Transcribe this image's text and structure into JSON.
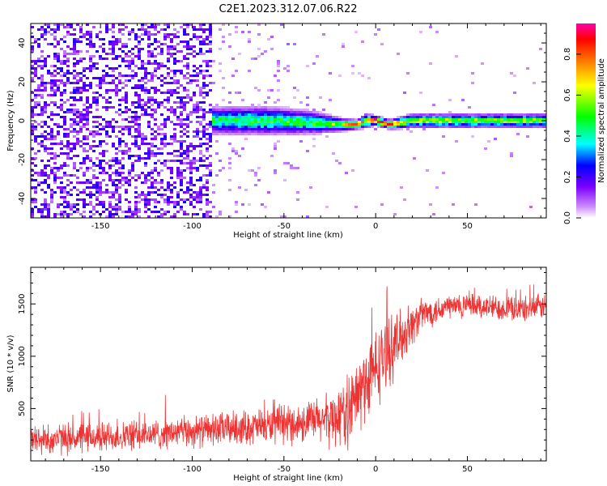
{
  "title": "C2E1.2023.312.07.06.R22",
  "chart_data": [
    {
      "type": "heatmap",
      "title": "C2E1.2023.312.07.06.R22",
      "xlabel": "Height of straight line (km)",
      "ylabel": "Frequency (Hz)",
      "xlim": [
        -188,
        93
      ],
      "ylim": [
        -50,
        50
      ],
      "xticks": [
        -150,
        -100,
        -50,
        0,
        50
      ],
      "yticks": [
        -40,
        -20,
        0,
        20,
        40
      ],
      "colorbar": {
        "label": "Normalized spectral amplitude",
        "range": [
          0,
          0.95
        ],
        "ticks": [
          0.0,
          0.2,
          0.4,
          0.6,
          0.8
        ],
        "colors": [
          "#ffffff",
          "#cc88ff",
          "#7b00ff",
          "#0000ff",
          "#00ffff",
          "#00ff00",
          "#ffff00",
          "#ff7f00",
          "#ff0000",
          "#ff00aa"
        ]
      },
      "noise_region": {
        "x_range": [
          -188,
          -90
        ],
        "amplitude": 0.2
      },
      "signal_band": [
        {
          "x": -90,
          "center": 0,
          "halfwidth": 6,
          "amplitude": 0.45
        },
        {
          "x": -60,
          "center": 0,
          "halfwidth": 6,
          "amplitude": 0.5
        },
        {
          "x": -35,
          "center": -1,
          "halfwidth": 5,
          "amplitude": 0.5
        },
        {
          "x": -20,
          "center": -2,
          "halfwidth": 3,
          "amplitude": 0.6
        },
        {
          "x": -10,
          "center": -2,
          "halfwidth": 2,
          "amplitude": 0.8
        },
        {
          "x": -5,
          "center": 0,
          "halfwidth": 3,
          "amplitude": 0.7
        },
        {
          "x": 0,
          "center": 0,
          "halfwidth": 2,
          "amplitude": 0.95
        },
        {
          "x": 8,
          "center": -2,
          "halfwidth": 2,
          "amplitude": 0.85
        },
        {
          "x": 20,
          "center": 0,
          "halfwidth": 3,
          "amplitude": 0.6
        },
        {
          "x": 50,
          "center": 0,
          "halfwidth": 3,
          "amplitude": 0.6
        },
        {
          "x": 93,
          "center": 0,
          "halfwidth": 3,
          "amplitude": 0.55
        }
      ]
    },
    {
      "type": "line",
      "xlabel": "Height of straight line (km)",
      "ylabel": "SNR (10 * v/v)",
      "xlim": [
        -188,
        93
      ],
      "ylim": [
        0,
        1850
      ],
      "xticks": [
        -150,
        -100,
        -50,
        0,
        50
      ],
      "yticks": [
        500,
        1000,
        1500
      ],
      "color": "#ee3333",
      "x": [
        -188,
        -160,
        -130,
        -100,
        -80,
        -60,
        -40,
        -25,
        -15,
        -5,
        5,
        15,
        25,
        40,
        60,
        80,
        93
      ],
      "y": [
        200,
        220,
        240,
        280,
        310,
        330,
        360,
        400,
        470,
        750,
        1000,
        1200,
        1400,
        1480,
        1470,
        1450,
        1480
      ],
      "spread": [
        150,
        150,
        140,
        150,
        160,
        170,
        190,
        250,
        350,
        400,
        350,
        250,
        150,
        130,
        120,
        120,
        120
      ]
    }
  ]
}
